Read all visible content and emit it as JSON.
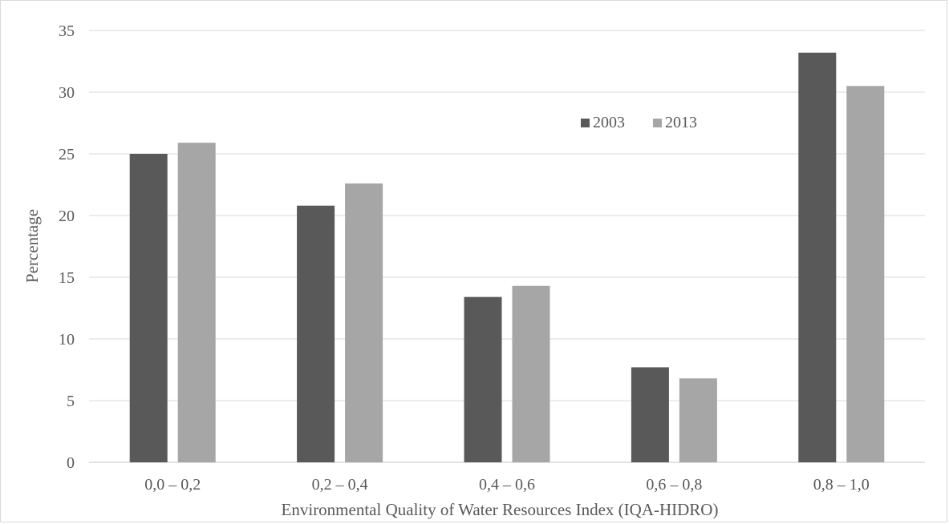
{
  "chart_data": {
    "type": "bar",
    "title": "",
    "xlabel": "Environmental Quality of Water Resources Index (IQA-HIDRO)",
    "ylabel": "Percentage",
    "categories": [
      "0,0 – 0,2",
      "0,2 – 0,4",
      "0,4 – 0,6",
      "0,6 – 0,8",
      "0,8 – 1,0"
    ],
    "series": [
      {
        "name": "2003",
        "color": "#595959",
        "values": [
          25.0,
          20.8,
          13.4,
          7.7,
          33.2
        ]
      },
      {
        "name": "2013",
        "color": "#a6a6a6",
        "values": [
          25.9,
          22.6,
          14.3,
          6.8,
          30.5
        ]
      }
    ],
    "ylim": [
      0,
      35
    ],
    "yticks": [
      0,
      5,
      10,
      15,
      20,
      25,
      30,
      35
    ],
    "grid": true,
    "legend_position": "top-right",
    "gridline_color": "#d9d9d9"
  }
}
